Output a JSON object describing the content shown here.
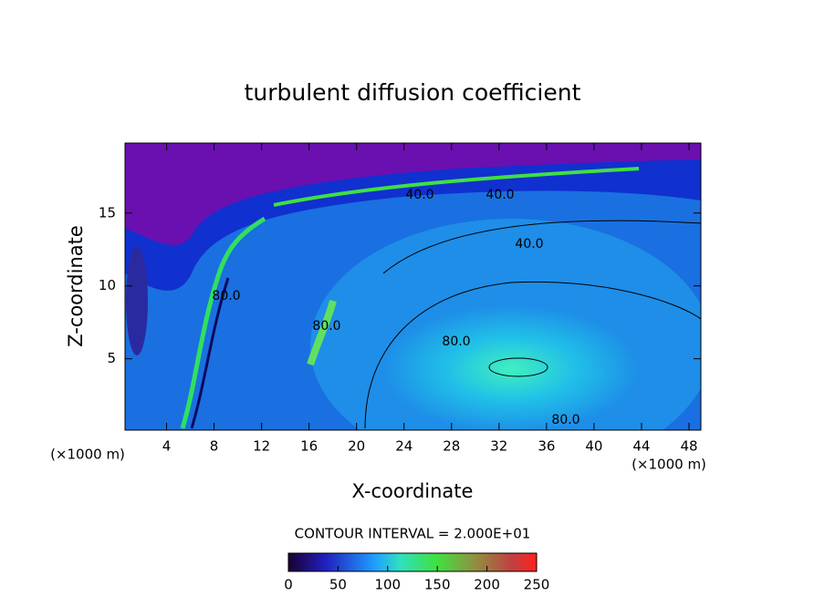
{
  "chart_data": {
    "type": "contour",
    "title": "turbulent diffusion coefficient",
    "x_label": "X-coordinate",
    "y_label": "Z-coordinate",
    "x_unit": "(×1000 m)",
    "y_unit": "(×1000 m)",
    "xlim": [
      0.5,
      49
    ],
    "ylim": [
      0.1,
      19.8
    ],
    "xticks": [
      4,
      8,
      12,
      16,
      20,
      24,
      28,
      32,
      36,
      40,
      44,
      48
    ],
    "yticks": [
      5,
      10,
      15
    ],
    "contour_labels": [
      "80.0",
      "80.0",
      "80.0",
      "40.0",
      "40.0",
      "40.0",
      "80.0"
    ],
    "contour_interval": "CONTOUR INTERVAL = 2.000E+01",
    "colorbar": {
      "lim": [
        0,
        250
      ],
      "ticks": [
        0,
        50,
        100,
        150,
        200,
        250
      ]
    }
  }
}
